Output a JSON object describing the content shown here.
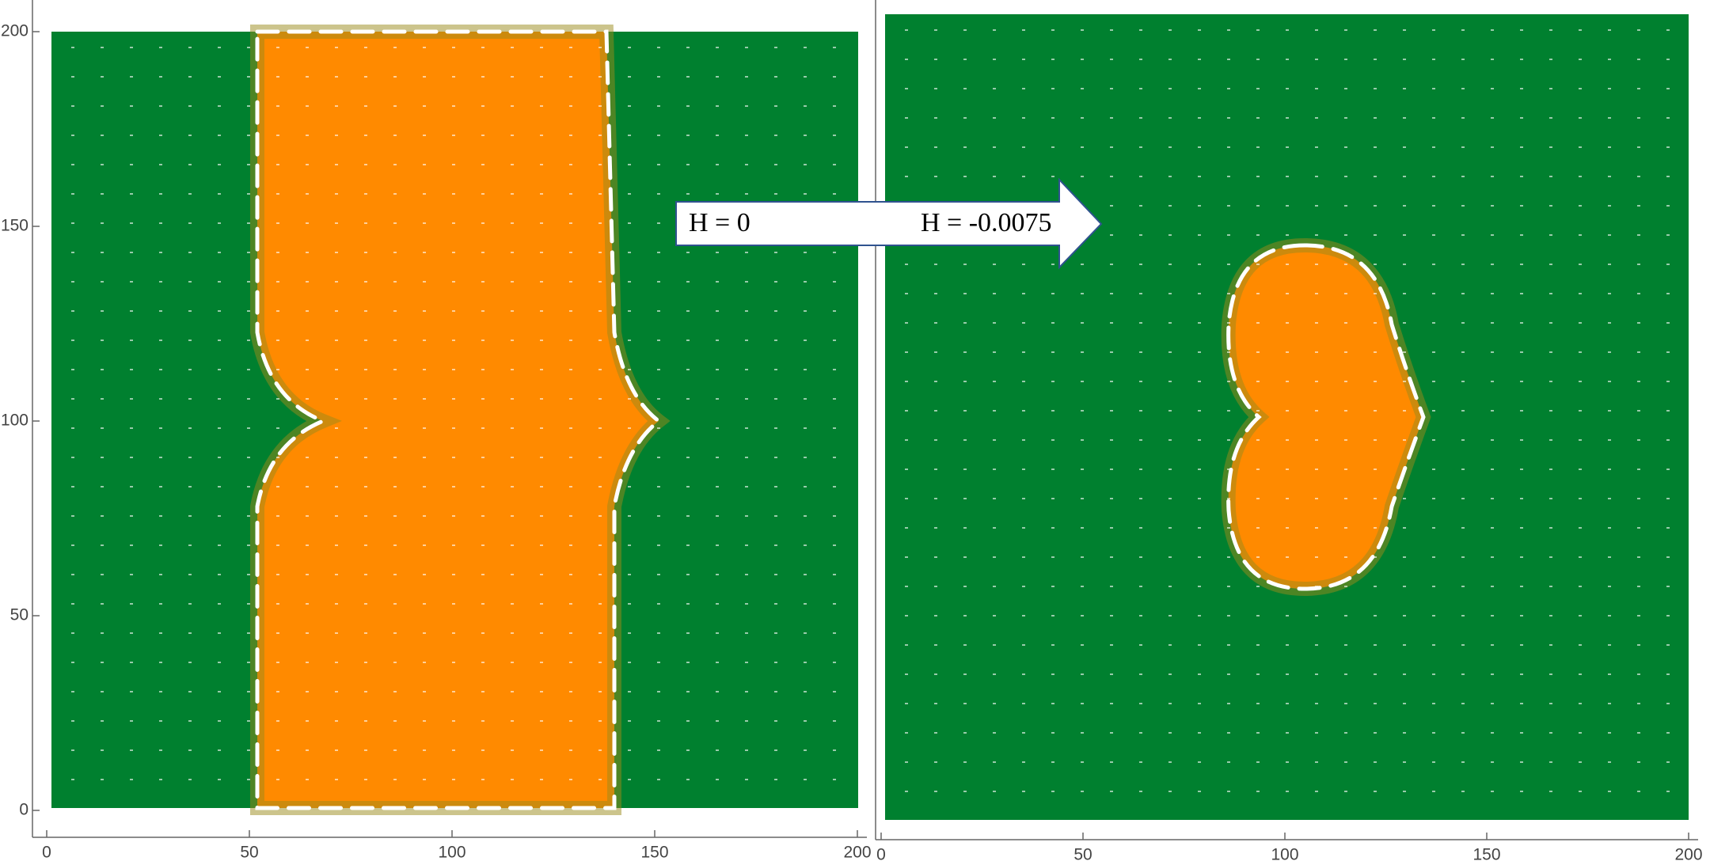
{
  "chart_data": [
    {
      "type": "vector-field",
      "xlim": [
        0,
        200
      ],
      "ylim": [
        0,
        200
      ],
      "xticks": [
        0,
        50,
        100,
        150,
        200
      ],
      "yticks": [
        0,
        50,
        100,
        150,
        200
      ],
      "color": "#00802f",
      "region_color": "#ff8a00"
    },
    {
      "type": "vector-field",
      "xlim": [
        0,
        200
      ],
      "xticks": [
        0,
        50,
        100,
        150,
        200
      ],
      "color": "#00802f",
      "region_color": "#ff8a00"
    }
  ],
  "annotations": [
    "H = 0",
    "H = -0.0075"
  ]
}
